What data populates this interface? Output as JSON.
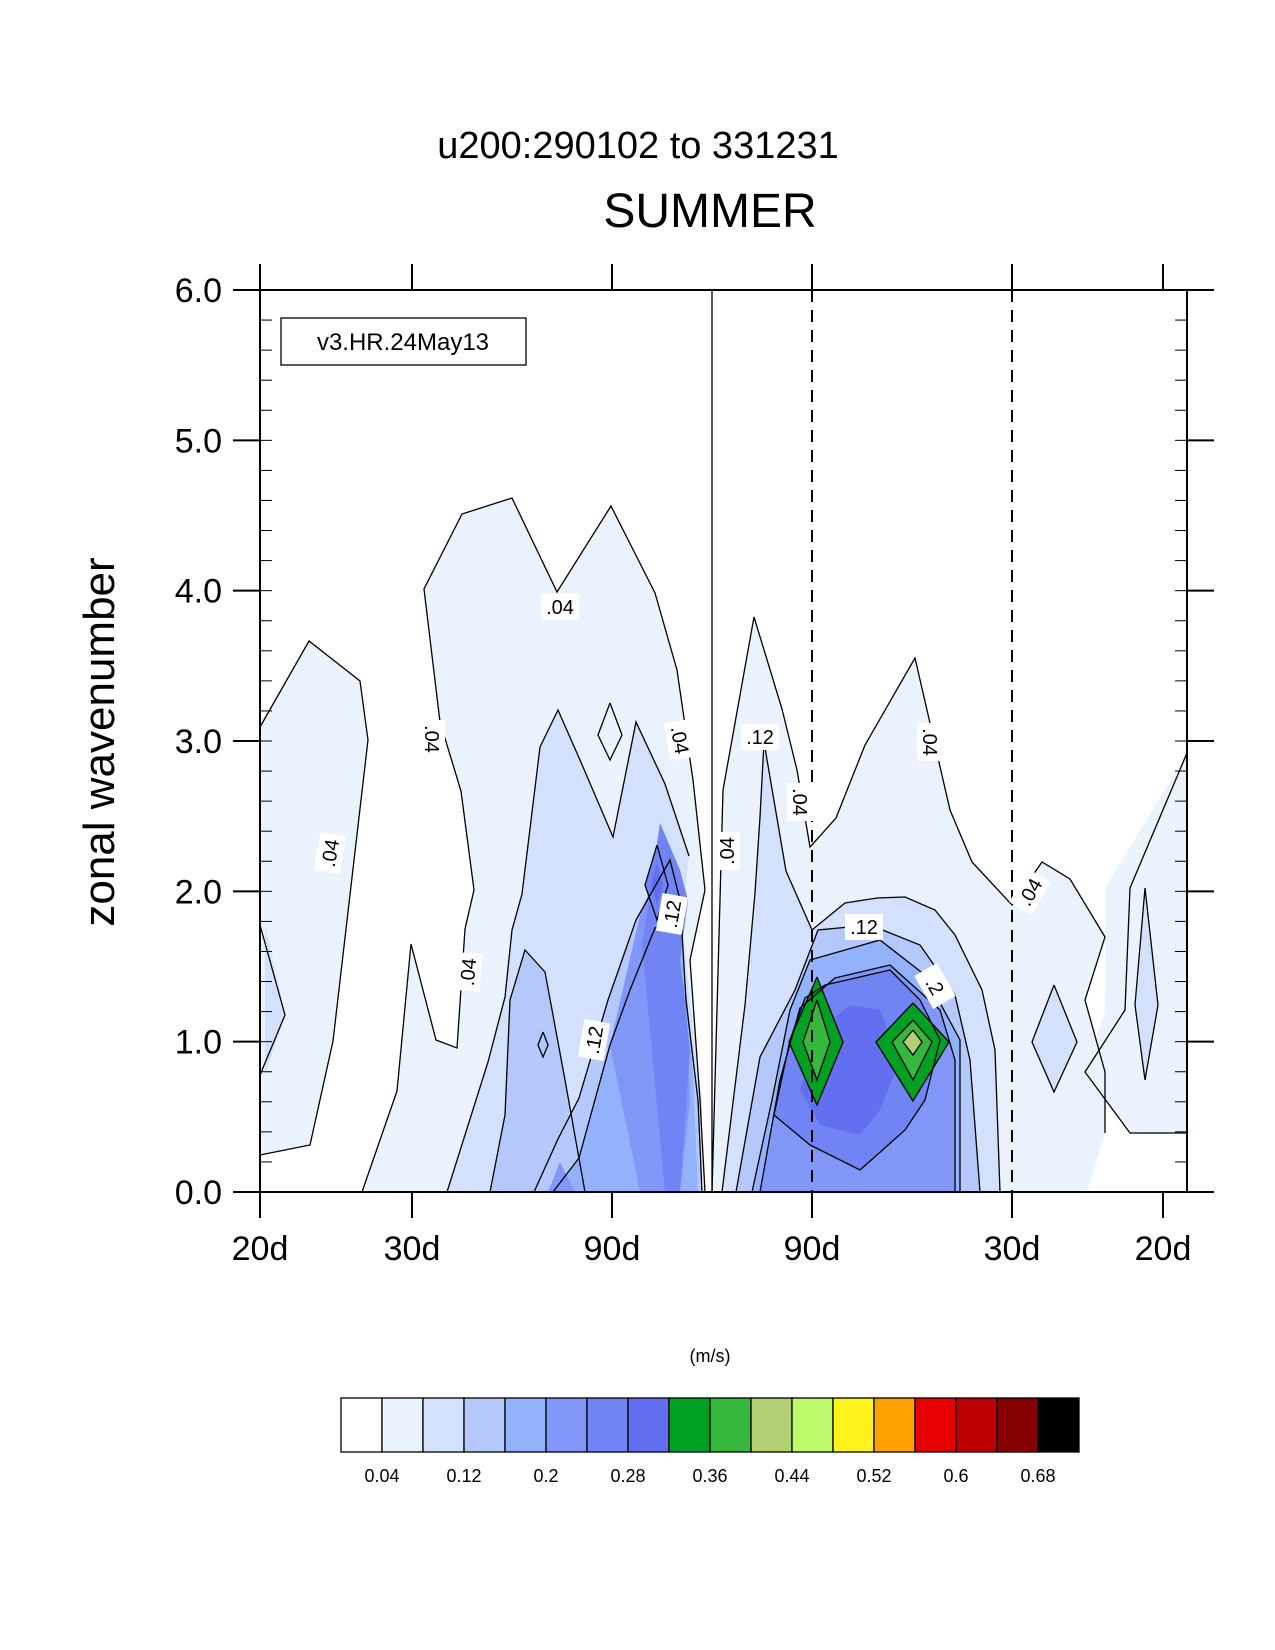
{
  "chart_data": {
    "type": "heatmap",
    "subtitle": "u200:290102 to 331231",
    "title": "SUMMER",
    "ylabel": "zonal wavenumber",
    "xlabel": "",
    "ylim": [
      0,
      6
    ],
    "yticks": [
      "0.0",
      "1.0",
      "2.0",
      "3.0",
      "4.0",
      "5.0",
      "6.0"
    ],
    "xticks": [
      "20d",
      "30d",
      "90d",
      "90d",
      "30d",
      "20d"
    ],
    "annotation": "v3.HR.24May13",
    "grid": false,
    "colorbar": {
      "units": "(m/s)",
      "levels": [
        "0.04",
        "0.12",
        "0.2",
        "0.28",
        "0.36",
        "0.44",
        "0.52",
        "0.6",
        "0.68"
      ],
      "colors": [
        "#ffffff",
        "#eaf3fd",
        "#d4e1fc",
        "#b5c8fb",
        "#92b3fc",
        "#8197f8",
        "#7184f3",
        "#636ef0",
        "#00a123",
        "#36b83c",
        "#b2cf73",
        "#bdfa6b",
        "#fff31b",
        "#ffa200",
        "#e80000",
        "#be0000",
        "#860000",
        "#000000"
      ]
    },
    "contour_labels": [
      ".04",
      ".04",
      ".04",
      ".04",
      ".04",
      ".12",
      ".12",
      ".12",
      ".04",
      ".04",
      ".04",
      ".12",
      ".2",
      ".04"
    ],
    "peaks": [
      {
        "side": "westward",
        "wavenumber": 2.0,
        "value": 0.3
      },
      {
        "side": "eastward",
        "wavenumber": 1.0,
        "value": 0.38
      },
      {
        "side": "eastward",
        "wavenumber": 1.0,
        "value": 0.42
      }
    ]
  }
}
